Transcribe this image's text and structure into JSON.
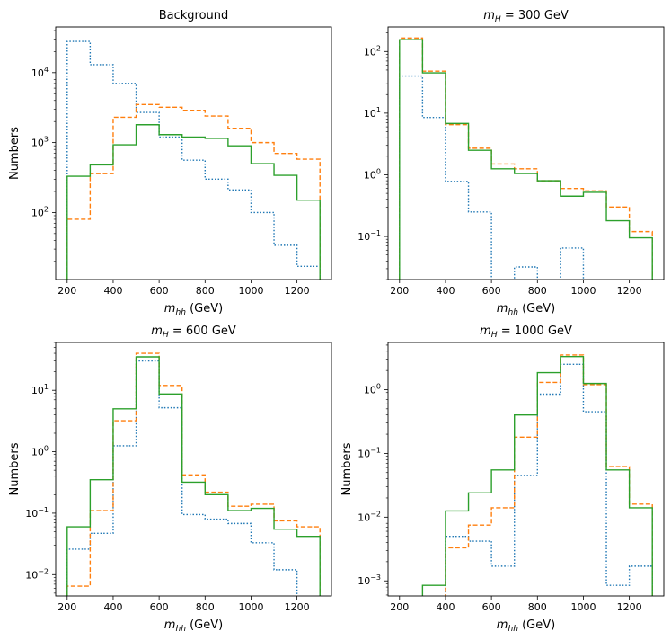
{
  "chart_data": [
    {
      "type": "histogram-step",
      "title": "Background",
      "xlabel": "m_hh (GeV)",
      "ylabel": "Numbers",
      "xscale": "linear",
      "yscale": "log",
      "xlim": [
        150,
        1350
      ],
      "ylim": [
        11,
        45000
      ],
      "xticks": [
        "200",
        "400",
        "600",
        "800",
        "1000",
        "1200"
      ],
      "yticks": [
        {
          "base": "10",
          "exp": "2",
          "value": 100
        },
        {
          "base": "10",
          "exp": "3",
          "value": 1000
        },
        {
          "base": "10",
          "exp": "4",
          "value": 10000
        }
      ],
      "bin_edges": [
        200,
        300,
        400,
        500,
        600,
        700,
        800,
        900,
        1000,
        1100,
        1200,
        1300
      ],
      "series": [
        {
          "name": "blue-dotted",
          "color": "#1f77b4",
          "dash": "1.5,2",
          "values": [
            28000,
            13000,
            7000,
            2700,
            1200,
            560,
            300,
            210,
            100,
            34,
            17
          ]
        },
        {
          "name": "orange-dashed",
          "color": "#ff7f0e",
          "dash": "5,2.5",
          "values": [
            80,
            360,
            2300,
            3500,
            3200,
            2900,
            2400,
            1600,
            1000,
            700,
            580
          ]
        },
        {
          "name": "green-solid",
          "color": "#2ca02c",
          "dash": "",
          "values": [
            330,
            480,
            930,
            1800,
            1300,
            1200,
            1150,
            900,
            500,
            340,
            150
          ]
        }
      ]
    },
    {
      "type": "histogram-step",
      "title": "m_H = 300 GeV",
      "xlabel": "m_hh (GeV)",
      "ylabel": "",
      "xscale": "linear",
      "yscale": "log",
      "xlim": [
        150,
        1350
      ],
      "ylim": [
        0.02,
        250
      ],
      "xticks": [
        "200",
        "400",
        "600",
        "800",
        "1000",
        "1200"
      ],
      "yticks": [
        {
          "base": "10",
          "exp": "−1",
          "value": 0.1
        },
        {
          "base": "10",
          "exp": "0",
          "value": 1
        },
        {
          "base": "10",
          "exp": "1",
          "value": 10
        },
        {
          "base": "10",
          "exp": "2",
          "value": 100
        }
      ],
      "bin_edges": [
        200,
        300,
        400,
        500,
        600,
        700,
        800,
        900,
        1000,
        1100,
        1200,
        1300
      ],
      "series": [
        {
          "name": "blue-dotted",
          "color": "#1f77b4",
          "dash": "1.5,2",
          "values": [
            40,
            8.5,
            0.78,
            0.25,
            0,
            0.032,
            0,
            0.065,
            0,
            0,
            0
          ]
        },
        {
          "name": "orange-dashed",
          "color": "#ff7f0e",
          "dash": "5,2.5",
          "values": [
            165,
            48,
            6.5,
            2.7,
            1.5,
            1.25,
            0.8,
            0.6,
            0.55,
            0.3,
            0.12
          ]
        },
        {
          "name": "green-solid",
          "color": "#2ca02c",
          "dash": "",
          "values": [
            155,
            45,
            6.8,
            2.5,
            1.25,
            1.05,
            0.8,
            0.45,
            0.52,
            0.18,
            0.095
          ]
        }
      ]
    },
    {
      "type": "histogram-step",
      "title": "m_H = 600 GeV",
      "xlabel": "m_hh (GeV)",
      "ylabel": "Numbers",
      "xscale": "linear",
      "yscale": "log",
      "xlim": [
        150,
        1350
      ],
      "ylim": [
        0.0045,
        60
      ],
      "xticks": [
        "200",
        "400",
        "600",
        "800",
        "1000",
        "1200"
      ],
      "yticks": [
        {
          "base": "10",
          "exp": "−2",
          "value": 0.01
        },
        {
          "base": "10",
          "exp": "−1",
          "value": 0.1
        },
        {
          "base": "10",
          "exp": "0",
          "value": 1
        },
        {
          "base": "10",
          "exp": "1",
          "value": 10
        }
      ],
      "bin_edges": [
        200,
        300,
        400,
        500,
        600,
        700,
        800,
        900,
        1000,
        1100,
        1200,
        1300
      ],
      "series": [
        {
          "name": "blue-dotted",
          "color": "#1f77b4",
          "dash": "1.5,2",
          "values": [
            0.026,
            0.047,
            1.25,
            30,
            5.2,
            0.095,
            0.08,
            0.068,
            0.033,
            0.012,
            0
          ]
        },
        {
          "name": "orange-dashed",
          "color": "#ff7f0e",
          "dash": "5,2.5",
          "values": [
            0.0065,
            0.11,
            3.2,
            40,
            12,
            0.42,
            0.22,
            0.13,
            0.14,
            0.075,
            0.06
          ]
        },
        {
          "name": "green-solid",
          "color": "#2ca02c",
          "dash": "",
          "values": [
            0.06,
            0.35,
            5,
            35,
            8.7,
            0.32,
            0.2,
            0.11,
            0.12,
            0.055,
            0.042
          ]
        }
      ]
    },
    {
      "type": "histogram-step",
      "title": "m_H = 1000 GeV",
      "xlabel": "m_hh (GeV)",
      "ylabel": "Numbers",
      "xscale": "linear",
      "yscale": "log",
      "xlim": [
        150,
        1350
      ],
      "ylim": [
        0.00058,
        5.5
      ],
      "xticks": [
        "200",
        "400",
        "600",
        "800",
        "1000",
        "1200"
      ],
      "yticks": [
        {
          "base": "10",
          "exp": "−3",
          "value": 0.001
        },
        {
          "base": "10",
          "exp": "−2",
          "value": 0.01
        },
        {
          "base": "10",
          "exp": "−1",
          "value": 0.1
        },
        {
          "base": "10",
          "exp": "0",
          "value": 1
        }
      ],
      "bin_edges": [
        300,
        400,
        500,
        600,
        700,
        800,
        900,
        1000,
        1100,
        1200,
        1300
      ],
      "series": [
        {
          "name": "blue-dotted",
          "color": "#1f77b4",
          "dash": "1.5,2",
          "values": [
            0,
            0.005,
            0.0042,
            0.0017,
            0.045,
            0.85,
            2.5,
            0.45,
            0.00085,
            0.0017
          ]
        },
        {
          "name": "orange-dashed",
          "color": "#ff7f0e",
          "dash": "5,2.5",
          "values": [
            0,
            0.0033,
            0.0075,
            0.014,
            0.18,
            1.3,
            3.5,
            1.2,
            0.062,
            0.016
          ]
        },
        {
          "name": "green-solid",
          "color": "#2ca02c",
          "dash": "",
          "values": [
            0.00085,
            0.0125,
            0.024,
            0.055,
            0.4,
            1.85,
            3.3,
            1.25,
            0.055,
            0.014
          ]
        }
      ]
    }
  ]
}
